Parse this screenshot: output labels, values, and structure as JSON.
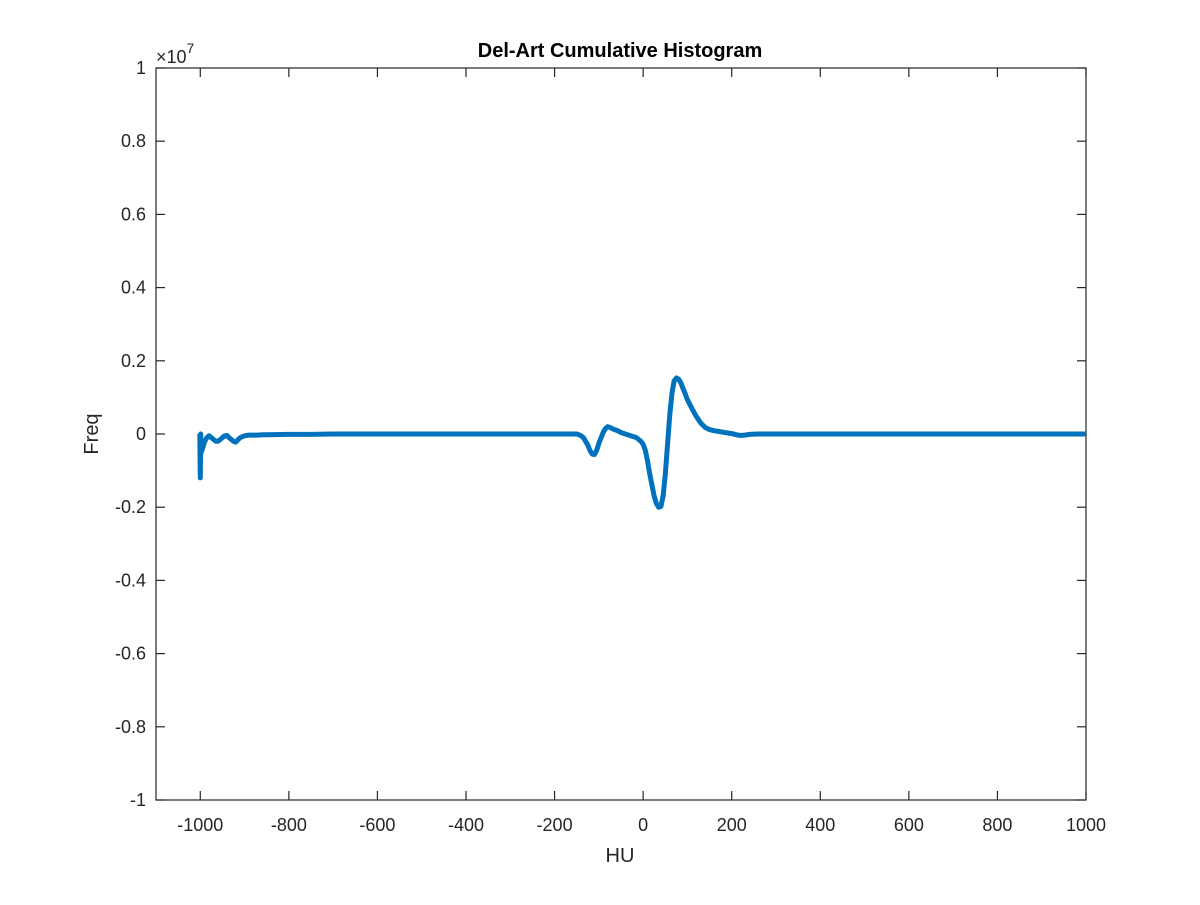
{
  "chart_data": {
    "type": "line",
    "title": "Del-Art Cumulative Histogram",
    "xlabel": "HU",
    "ylabel": "Freq",
    "xlim": [
      -1100,
      1000
    ],
    "ylim": [
      -1,
      1
    ],
    "y_multiplier_label": "×10",
    "y_multiplier_exponent": "7",
    "y_multiplier": 10000000,
    "x_ticks": [
      -1000,
      -800,
      -600,
      -400,
      -200,
      0,
      200,
      400,
      600,
      800,
      1000
    ],
    "x_tick_labels": [
      "-1000",
      "-800",
      "-600",
      "-400",
      "-200",
      "0",
      "200",
      "400",
      "600",
      "800",
      "1000"
    ],
    "y_ticks": [
      -1,
      -0.8,
      -0.6,
      -0.4,
      -0.2,
      0,
      0.2,
      0.4,
      0.6,
      0.8,
      1
    ],
    "y_tick_labels": [
      "-1",
      "-0.8",
      "-0.6",
      "-0.4",
      "-0.2",
      "0",
      "0.2",
      "0.4",
      "0.6",
      "0.8",
      "1"
    ],
    "grid": false,
    "box": true,
    "colors": {
      "line": "#0072BD",
      "axes": "#262626"
    },
    "series": [
      {
        "x": [
          -1002,
          -1001,
          -1000,
          -999,
          -998,
          -995,
          -990,
          -985,
          -980,
          -975,
          -970,
          -965,
          -960,
          -955,
          -950,
          -945,
          -940,
          -935,
          -930,
          -925,
          -920,
          -915,
          -910,
          -905,
          -900,
          -890,
          -880,
          -870,
          -860,
          -850,
          -800,
          -750,
          -700,
          -650,
          -600,
          -500,
          -400,
          -300,
          -200,
          -160,
          -150,
          -145,
          -140,
          -135,
          -130,
          -125,
          -120,
          -115,
          -110,
          -105,
          -100,
          -95,
          -90,
          -85,
          -80,
          -75,
          -70,
          -65,
          -60,
          -55,
          -50,
          -45,
          -40,
          -35,
          -30,
          -25,
          -20,
          -15,
          -10,
          -5,
          0,
          5,
          10,
          15,
          20,
          25,
          30,
          35,
          40,
          45,
          50,
          55,
          60,
          65,
          70,
          75,
          80,
          85,
          90,
          95,
          100,
          110,
          120,
          130,
          140,
          150,
          160,
          170,
          180,
          190,
          200,
          210,
          220,
          230,
          240,
          260,
          300,
          400,
          500,
          600,
          700,
          800,
          900,
          1000
        ],
        "y": [
          0.002,
          0.0,
          -0.12,
          0.0,
          -0.05,
          -0.04,
          -0.02,
          -0.01,
          -0.005,
          -0.01,
          -0.015,
          -0.02,
          -0.02,
          -0.015,
          -0.01,
          -0.005,
          -0.004,
          -0.01,
          -0.015,
          -0.02,
          -0.022,
          -0.016,
          -0.01,
          -0.007,
          -0.005,
          -0.003,
          -0.003,
          -0.003,
          -0.002,
          -0.002,
          -0.001,
          -0.001,
          0.0,
          0.0,
          0.0,
          0.0,
          0.0,
          0.0,
          0.0,
          0.0,
          0.0,
          -0.002,
          -0.005,
          -0.01,
          -0.02,
          -0.03,
          -0.045,
          -0.055,
          -0.056,
          -0.045,
          -0.025,
          -0.01,
          0.005,
          0.015,
          0.02,
          0.018,
          0.015,
          0.012,
          0.01,
          0.007,
          0.004,
          0.002,
          0.0,
          -0.002,
          -0.004,
          -0.006,
          -0.008,
          -0.01,
          -0.015,
          -0.02,
          -0.028,
          -0.045,
          -0.075,
          -0.11,
          -0.14,
          -0.17,
          -0.19,
          -0.2,
          -0.198,
          -0.17,
          -0.11,
          -0.03,
          0.05,
          0.11,
          0.145,
          0.153,
          0.15,
          0.14,
          0.125,
          0.11,
          0.094,
          0.07,
          0.048,
          0.03,
          0.018,
          0.012,
          0.009,
          0.007,
          0.005,
          0.003,
          0.001,
          -0.002,
          -0.004,
          -0.003,
          -0.001,
          0.0,
          0.0,
          0.0,
          0.0,
          0.0,
          0.0,
          0.0,
          0.0,
          0.0
        ]
      }
    ]
  }
}
